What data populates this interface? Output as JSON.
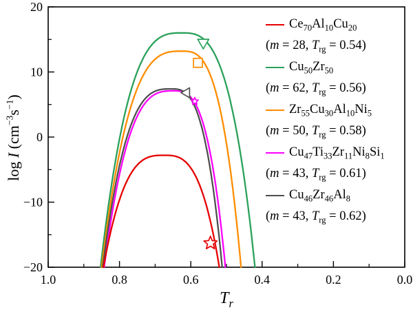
{
  "figure": {
    "background": "#ffffff",
    "axis_color": "#000000"
  },
  "chart_data": {
    "type": "line",
    "title": "",
    "xlabel_parts": [
      {
        "i": "T"
      },
      {
        "sub_i": "r"
      }
    ],
    "ylabel_parts": [
      {
        "t": "log "
      },
      {
        "i": "I"
      },
      {
        "t": " (cm"
      },
      {
        "sup": "−3"
      },
      {
        "t": "s"
      },
      {
        "sup": "−1"
      },
      {
        "t": ")"
      }
    ],
    "xlim": [
      1.0,
      0.0
    ],
    "ylim": [
      -20,
      20
    ],
    "x_axis_reversed": true,
    "grid": false,
    "legend_position": "outside-right",
    "x_ticks": {
      "major": [
        1.0,
        0.8,
        0.6,
        0.4,
        0.2,
        0.0
      ],
      "labels": [
        "1.0",
        "0.8",
        "0.6",
        "0.4",
        "0.2",
        "0.0"
      ],
      "minor": [
        0.9,
        0.7,
        0.5,
        0.3,
        0.1
      ]
    },
    "y_ticks": {
      "major": [
        -20,
        -10,
        0,
        10,
        20
      ],
      "labels": [
        "−20",
        "−10",
        "0",
        "10",
        "20"
      ],
      "minor": [
        -15,
        -5,
        5,
        15
      ]
    },
    "series": [
      {
        "name": "Ce70Al10Cu20",
        "color": "#e60000",
        "m": 28,
        "Trg": "0.54",
        "formula": [
          [
            "Ce",
            "70"
          ],
          [
            "Al",
            "10"
          ],
          [
            "Cu",
            "20"
          ]
        ],
        "peak": {
          "x": 0.675,
          "y": -2.8
        },
        "x_start": 0.845,
        "x_end": 0.52,
        "marker": {
          "shape": "star",
          "x": 0.545,
          "y": -16.3,
          "size": 10
        }
      },
      {
        "name": "Cu50Zr50",
        "color": "#2aa05a",
        "m": 62,
        "Trg": "0.56",
        "formula": [
          [
            "Cu",
            "50"
          ],
          [
            "Zr",
            "50"
          ]
        ],
        "peak": {
          "x": 0.625,
          "y": 16.0
        },
        "x_start": 0.853,
        "x_end": 0.42,
        "marker": {
          "shape": "triangle-down",
          "x": 0.565,
          "y": 14.5,
          "size": 9
        }
      },
      {
        "name": "Zr55Cu30Al10Ni5",
        "color": "#ff8c00",
        "m": 50,
        "Trg": "0.58",
        "formula": [
          [
            "Zr",
            "55"
          ],
          [
            "Cu",
            "30"
          ],
          [
            "Al",
            "10"
          ],
          [
            "Ni",
            "5"
          ]
        ],
        "peak": {
          "x": 0.625,
          "y": 13.2
        },
        "x_start": 0.85,
        "x_end": 0.459,
        "marker": {
          "shape": "square",
          "x": 0.58,
          "y": 11.4,
          "size": 6.5
        }
      },
      {
        "name": "Cu47Ti33Zr11Ni8Si1",
        "color": "#ff00ff",
        "m": 43,
        "Trg": "0.61",
        "formula": [
          [
            "Cu",
            "47"
          ],
          [
            "Ti",
            "33"
          ],
          [
            "Zr",
            "11"
          ],
          [
            "Ni",
            "8"
          ],
          [
            "Si",
            "1"
          ]
        ],
        "peak": {
          "x": 0.648,
          "y": 7.1
        },
        "x_start": 0.843,
        "x_end": 0.503,
        "marker": {
          "shape": "star",
          "x": 0.589,
          "y": 5.5,
          "size": 5.5
        }
      },
      {
        "name": "Cu46Zr46Al8",
        "color": "#4f4f4f",
        "m": 43,
        "Trg": "0.62",
        "formula": [
          [
            "Cu",
            "46"
          ],
          [
            "Zr",
            "46"
          ],
          [
            "Al",
            "8"
          ]
        ],
        "peak": {
          "x": 0.655,
          "y": 7.4
        },
        "x_start": 0.847,
        "x_end": 0.512,
        "marker": {
          "shape": "triangle-left",
          "x": 0.612,
          "y": 6.8,
          "size": 8
        }
      }
    ],
    "draw_order": [
      1,
      2,
      3,
      4,
      0
    ]
  },
  "legend": {
    "paren_open": "(",
    "m_symbol": "m",
    "equals": " = ",
    "comma": ", ",
    "T_symbol": "T",
    "T_subscript": "rg",
    "paren_close": ")"
  }
}
